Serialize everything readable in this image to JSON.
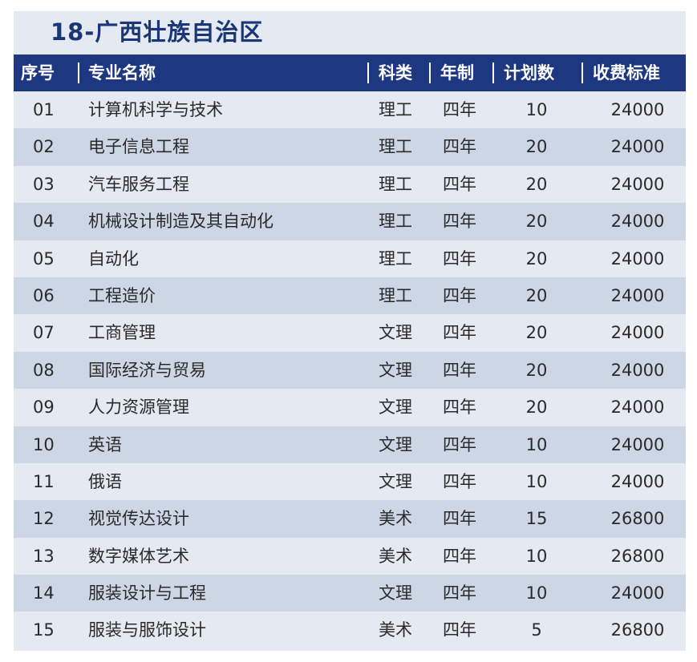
{
  "title": "18-广西壮族自治区",
  "headers": {
    "no": "序号",
    "name": "专业名称",
    "type": "科类",
    "years": "年制",
    "plan": "计划数",
    "fee": "收费标准"
  },
  "rows": [
    {
      "no": "01",
      "name": "计算机科学与技术",
      "type": "理工",
      "years": "四年",
      "plan": "10",
      "fee": "24000"
    },
    {
      "no": "02",
      "name": "电子信息工程",
      "type": "理工",
      "years": "四年",
      "plan": "20",
      "fee": "24000"
    },
    {
      "no": "03",
      "name": "汽车服务工程",
      "type": "理工",
      "years": "四年",
      "plan": "20",
      "fee": "24000"
    },
    {
      "no": "04",
      "name": "机械设计制造及其自动化",
      "type": "理工",
      "years": "四年",
      "plan": "20",
      "fee": "24000"
    },
    {
      "no": "05",
      "name": "自动化",
      "type": "理工",
      "years": "四年",
      "plan": "20",
      "fee": "24000"
    },
    {
      "no": "06",
      "name": "工程造价",
      "type": "理工",
      "years": "四年",
      "plan": "20",
      "fee": "24000"
    },
    {
      "no": "07",
      "name": "工商管理",
      "type": "文理",
      "years": "四年",
      "plan": "20",
      "fee": "24000"
    },
    {
      "no": "08",
      "name": "国际经济与贸易",
      "type": "文理",
      "years": "四年",
      "plan": "20",
      "fee": "24000"
    },
    {
      "no": "09",
      "name": "人力资源管理",
      "type": "文理",
      "years": "四年",
      "plan": "20",
      "fee": "24000"
    },
    {
      "no": "10",
      "name": "英语",
      "type": "文理",
      "years": "四年",
      "plan": "10",
      "fee": "24000"
    },
    {
      "no": "11",
      "name": "俄语",
      "type": "文理",
      "years": "四年",
      "plan": "10",
      "fee": "24000"
    },
    {
      "no": "12",
      "name": "视觉传达设计",
      "type": "美术",
      "years": "四年",
      "plan": "15",
      "fee": "26800"
    },
    {
      "no": "13",
      "name": "数字媒体艺术",
      "type": "美术",
      "years": "四年",
      "plan": "10",
      "fee": "26800"
    },
    {
      "no": "14",
      "name": "服装设计与工程",
      "type": "文理",
      "years": "四年",
      "plan": "10",
      "fee": "24000"
    },
    {
      "no": "15",
      "name": "服装与服饰设计",
      "type": "美术",
      "years": "四年",
      "plan": "5",
      "fee": "26800"
    }
  ]
}
